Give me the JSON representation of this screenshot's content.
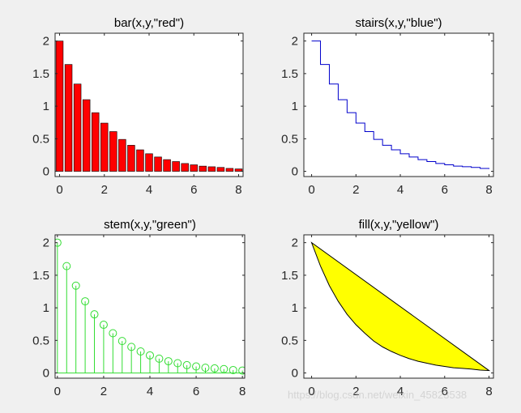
{
  "figure": {
    "background": "#f0f0f0",
    "watermark": "https://blog.csdn.net/weixin_45823538"
  },
  "chart_data": [
    {
      "type": "bar",
      "title": "bar(x,y,\"red\")",
      "xlabel": "",
      "ylabel": "",
      "x": [
        0,
        0.4,
        0.8,
        1.2,
        1.6,
        2.0,
        2.4,
        2.8,
        3.2,
        3.6,
        4.0,
        4.4,
        4.8,
        5.2,
        5.6,
        6.0,
        6.4,
        6.8,
        7.2,
        7.6,
        8.0
      ],
      "values": [
        2.0,
        1.64,
        1.34,
        1.1,
        0.9,
        0.74,
        0.61,
        0.49,
        0.4,
        0.33,
        0.27,
        0.22,
        0.18,
        0.15,
        0.12,
        0.1,
        0.08,
        0.07,
        0.06,
        0.045,
        0.037
      ],
      "color": "#ff0000",
      "xlim": [
        -0.2,
        8.2
      ],
      "ylim": [
        -0.08,
        2.12
      ],
      "xticks": [
        0,
        2,
        4,
        6,
        8
      ],
      "yticks": [
        0,
        0.5,
        1,
        1.5,
        2
      ],
      "xtick_labels": [
        "0",
        "2",
        "4",
        "6",
        "8"
      ],
      "ytick_labels": [
        "0",
        "0.5",
        "1",
        "1.5",
        "2"
      ]
    },
    {
      "type": "line",
      "style": "stairs",
      "title": "stairs(x,y,\"blue\")",
      "xlabel": "",
      "ylabel": "",
      "x": [
        0,
        0.4,
        0.8,
        1.2,
        1.6,
        2.0,
        2.4,
        2.8,
        3.2,
        3.6,
        4.0,
        4.4,
        4.8,
        5.2,
        5.6,
        6.0,
        6.4,
        6.8,
        7.2,
        7.6,
        8.0
      ],
      "values": [
        2.0,
        1.64,
        1.34,
        1.1,
        0.9,
        0.74,
        0.61,
        0.49,
        0.4,
        0.33,
        0.27,
        0.22,
        0.18,
        0.15,
        0.12,
        0.1,
        0.08,
        0.07,
        0.06,
        0.045,
        0.037
      ],
      "color": "#0000cc",
      "xlim": [
        -0.35,
        8.2
      ],
      "ylim": [
        -0.08,
        2.12
      ],
      "xticks": [
        0,
        2,
        4,
        6,
        8
      ],
      "yticks": [
        0,
        0.5,
        1,
        1.5,
        2
      ],
      "xtick_labels": [
        "0",
        "2",
        "4",
        "6",
        "8"
      ],
      "ytick_labels": [
        "0",
        "0.5",
        "1",
        "1.5",
        "2"
      ]
    },
    {
      "type": "scatter",
      "style": "stem",
      "title": "stem(x,y,\"green\")",
      "xlabel": "",
      "ylabel": "",
      "x": [
        0,
        0.4,
        0.8,
        1.2,
        1.6,
        2.0,
        2.4,
        2.8,
        3.2,
        3.6,
        4.0,
        4.4,
        4.8,
        5.2,
        5.6,
        6.0,
        6.4,
        6.8,
        7.2,
        7.6,
        8.0
      ],
      "values": [
        2.0,
        1.64,
        1.34,
        1.1,
        0.9,
        0.74,
        0.61,
        0.49,
        0.4,
        0.33,
        0.27,
        0.22,
        0.18,
        0.15,
        0.12,
        0.1,
        0.08,
        0.07,
        0.06,
        0.045,
        0.037
      ],
      "color": "#33dd33",
      "xlim": [
        -0.1,
        8.1
      ],
      "ylim": [
        -0.08,
        2.12
      ],
      "xticks": [
        0,
        2,
        4,
        6,
        8
      ],
      "yticks": [
        0,
        0.5,
        1,
        1.5,
        2
      ],
      "xtick_labels": [
        "0",
        "2",
        "4",
        "6",
        "8"
      ],
      "ytick_labels": [
        "0",
        "0.5",
        "1",
        "1.5",
        "2"
      ]
    },
    {
      "type": "area",
      "style": "fill",
      "title": "fill(x,y,\"yellow\")",
      "xlabel": "",
      "ylabel": "",
      "x": [
        0,
        0.4,
        0.8,
        1.2,
        1.6,
        2.0,
        2.4,
        2.8,
        3.2,
        3.6,
        4.0,
        4.4,
        4.8,
        5.2,
        5.6,
        6.0,
        6.4,
        6.8,
        7.2,
        7.6,
        8.0
      ],
      "values": [
        2.0,
        1.64,
        1.34,
        1.1,
        0.9,
        0.74,
        0.61,
        0.49,
        0.4,
        0.33,
        0.27,
        0.22,
        0.18,
        0.15,
        0.12,
        0.1,
        0.08,
        0.07,
        0.06,
        0.045,
        0.037
      ],
      "color": "#ffff00",
      "edge_color": "#000000",
      "xlim": [
        -0.35,
        8.2
      ],
      "ylim": [
        -0.08,
        2.12
      ],
      "xticks": [
        0,
        2,
        4,
        6,
        8
      ],
      "yticks": [
        0,
        0.5,
        1,
        1.5,
        2
      ],
      "xtick_labels": [
        "0",
        "2",
        "4",
        "6",
        "8"
      ],
      "ytick_labels": [
        "0",
        "0.5",
        "1",
        "1.5",
        "2"
      ]
    }
  ]
}
